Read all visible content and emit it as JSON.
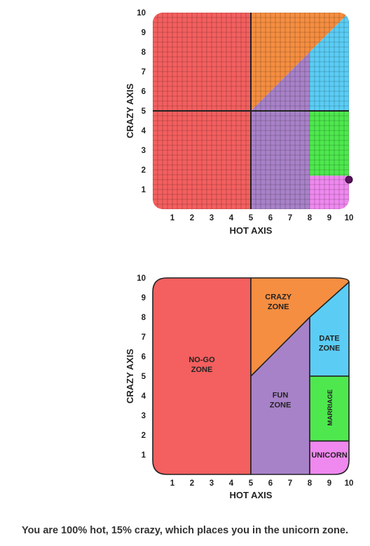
{
  "chart_data": [
    {
      "type": "scatter",
      "xlabel": "HOT AXIS",
      "ylabel": "CRAZY AXIS",
      "xlim": [
        0,
        10
      ],
      "ylim": [
        0,
        10
      ],
      "x_ticks": [
        "1",
        "2",
        "3",
        "4",
        "5",
        "6",
        "7",
        "8",
        "9",
        "10"
      ],
      "y_ticks": [
        "1",
        "2",
        "3",
        "4",
        "5",
        "6",
        "7",
        "8",
        "9",
        "10"
      ],
      "grid": true,
      "point": {
        "x": 10,
        "y": 1.5,
        "color": "#5c1060"
      },
      "colors": {
        "nogo": "#f45f5f",
        "crazy": "#f58e41",
        "fun": "#a882c8",
        "date": "#5bcdf5",
        "marriage": "#4ee84e",
        "unicorn": "#ef88ef"
      }
    },
    {
      "type": "area",
      "xlabel": "HOT AXIS",
      "ylabel": "CRAZY AXIS",
      "xlim": [
        0,
        10
      ],
      "ylim": [
        0,
        10
      ],
      "x_ticks": [
        "1",
        "2",
        "3",
        "4",
        "5",
        "6",
        "7",
        "8",
        "9",
        "10"
      ],
      "y_ticks": [
        "1",
        "2",
        "3",
        "4",
        "5",
        "6",
        "7",
        "8",
        "9",
        "10"
      ],
      "zones": [
        {
          "name": "nogo",
          "label": [
            "NO-GO",
            "ZONE"
          ],
          "color": "#f45f5f"
        },
        {
          "name": "crazy",
          "label": [
            "CRAZY",
            "ZONE"
          ],
          "color": "#f58e41"
        },
        {
          "name": "fun",
          "label": [
            "FUN",
            "ZONE"
          ],
          "color": "#a882c8"
        },
        {
          "name": "date",
          "label": [
            "DATE",
            "ZONE"
          ],
          "color": "#5bcdf5"
        },
        {
          "name": "marriage",
          "label": [
            "MARRIAGE"
          ],
          "color": "#4ee84e"
        },
        {
          "name": "unicorn",
          "label": [
            "UNICORN"
          ],
          "color": "#ef88ef"
        }
      ]
    }
  ],
  "result_text": "You are 100% hot, 15% crazy, which places you in the unicorn zone."
}
